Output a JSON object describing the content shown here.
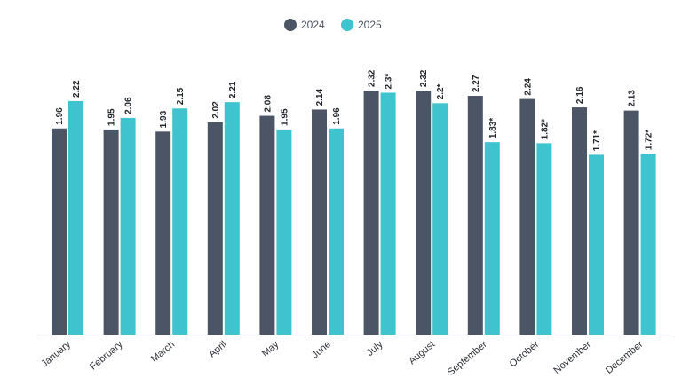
{
  "chart_data": {
    "type": "bar",
    "categories": [
      "January",
      "February",
      "March",
      "April",
      "May",
      "June",
      "July",
      "August",
      "September",
      "October",
      "November",
      "December"
    ],
    "series": [
      {
        "name": "2024",
        "color": "#4b5565",
        "values": [
          1.96,
          1.95,
          1.93,
          2.02,
          2.08,
          2.14,
          2.32,
          2.32,
          2.27,
          2.24,
          2.16,
          2.13
        ],
        "labels": [
          "1.96",
          "1.95",
          "1.93",
          "2.02",
          "2.08",
          "2.14",
          "2.32",
          "2.32",
          "2.27",
          "2.24",
          "2.16",
          "2.13"
        ]
      },
      {
        "name": "2025",
        "color": "#3ec3cf",
        "values": [
          2.22,
          2.06,
          2.15,
          2.21,
          1.95,
          1.96,
          2.3,
          2.2,
          1.83,
          1.82,
          1.71,
          1.72
        ],
        "labels": [
          "2.22",
          "2.06",
          "2.15",
          "2.21",
          "1.95",
          "1.96",
          "2.3*",
          "2.2*",
          "1.83*",
          "1.82*",
          "1.71*",
          "1.72*"
        ]
      }
    ],
    "ylim": [
      0,
      2.38
    ],
    "legend_position": "top-center",
    "grid": false,
    "axis_line_color": "#bfc3c9"
  }
}
